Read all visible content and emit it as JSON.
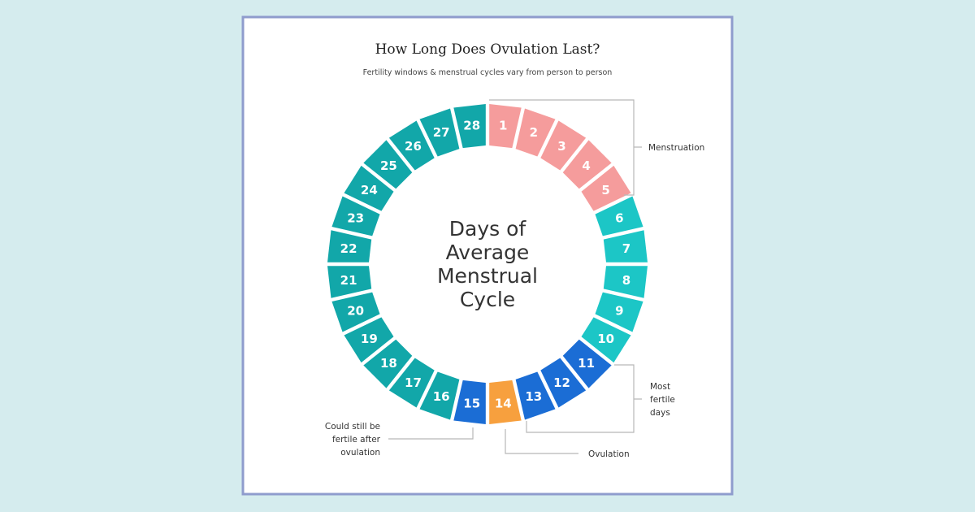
{
  "title": "How Long Does Ovulation Last?",
  "subtitle": "Fertility windows & menstrual cycles vary from person to person",
  "center_text": [
    "Days of",
    "Average",
    "Menstrual",
    "Cycle"
  ],
  "days": [
    {
      "label": "1",
      "color": "#f59c9c"
    },
    {
      "label": "2",
      "color": "#f59c9c"
    },
    {
      "label": "3",
      "color": "#f59c9c"
    },
    {
      "label": "4",
      "color": "#f59c9c"
    },
    {
      "label": "5",
      "color": "#f59c9c"
    },
    {
      "label": "6",
      "color": "#1cc6c6"
    },
    {
      "label": "7",
      "color": "#1cc6c6"
    },
    {
      "label": "8",
      "color": "#1cc6c6"
    },
    {
      "label": "9",
      "color": "#1cc6c6"
    },
    {
      "label": "10",
      "color": "#1cc6c6"
    },
    {
      "label": "11",
      "color": "#1b6dd5"
    },
    {
      "label": "12",
      "color": "#1b6dd5"
    },
    {
      "label": "13",
      "color": "#1b6dd5"
    },
    {
      "label": "14",
      "color": "#f7a03e"
    },
    {
      "label": "15",
      "color": "#1b6dd5"
    },
    {
      "label": "16",
      "color": "#12a7a9"
    },
    {
      "label": "17",
      "color": "#12a7a9"
    },
    {
      "label": "18",
      "color": "#12a7a9"
    },
    {
      "label": "19",
      "color": "#12a7a9"
    },
    {
      "label": "20",
      "color": "#12a7a9"
    },
    {
      "label": "21",
      "color": "#12a7a9"
    },
    {
      "label": "22",
      "color": "#12a7a9"
    },
    {
      "label": "23",
      "color": "#12a7a9"
    },
    {
      "label": "24",
      "color": "#12a7a9"
    },
    {
      "label": "25",
      "color": "#12a7a9"
    },
    {
      "label": "26",
      "color": "#12a7a9"
    },
    {
      "label": "27",
      "color": "#12a7a9"
    },
    {
      "label": "28",
      "color": "#12a7a9"
    }
  ],
  "annotations": {
    "menstruation": [
      "Menstruation"
    ],
    "most_fertile": [
      "Most",
      "fertile",
      "days"
    ],
    "ovulation": [
      "Ovulation"
    ],
    "after_ovulation": [
      "Could still be",
      "fertile after",
      "ovulation"
    ]
  }
}
